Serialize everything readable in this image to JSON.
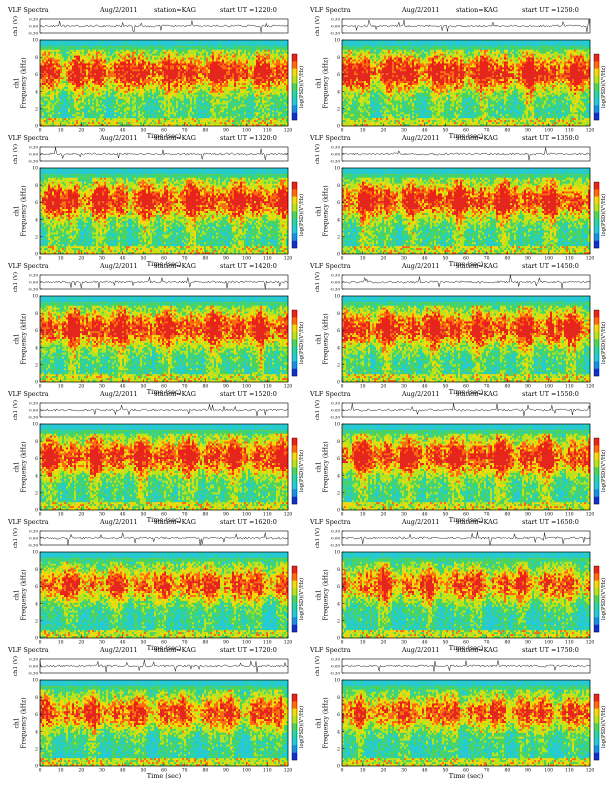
{
  "chart_data": {
    "type": "heatmap",
    "common": {
      "title_prefix": "VLF Spectra",
      "date": "Aug/2/2011",
      "station": "station=KAG",
      "start_label": "start UT =",
      "top_ylabel": "ch1 (V)",
      "top_yticks": [
        "0.30",
        "0.00",
        "-0.30"
      ],
      "top_ylim": [
        -0.3,
        0.3
      ],
      "freq_ylabel": "ch1\nFrequency (kHz)",
      "freq_ylim": [
        0,
        10
      ],
      "freq_yticks": [
        0,
        2,
        4,
        6,
        8,
        10
      ],
      "xlabel": "Time (sec)",
      "xlim": [
        0,
        120
      ],
      "xticks": [
        0,
        10,
        20,
        30,
        40,
        50,
        60,
        70,
        80,
        90,
        100,
        110,
        120
      ],
      "colorbar_label": "log(PSD)(V²/Hz)"
    },
    "panels": [
      {
        "start_ut": "1220:0"
      },
      {
        "start_ut": "1250:0"
      },
      {
        "start_ut": "1320:0"
      },
      {
        "start_ut": "1350:0"
      },
      {
        "start_ut": "1420:0"
      },
      {
        "start_ut": "1450:0"
      },
      {
        "start_ut": "1520:0"
      },
      {
        "start_ut": "1550:0"
      },
      {
        "start_ut": "1620:0"
      },
      {
        "start_ut": "1650:0"
      },
      {
        "start_ut": "1720:0"
      },
      {
        "start_ut": "1750:0"
      }
    ]
  }
}
